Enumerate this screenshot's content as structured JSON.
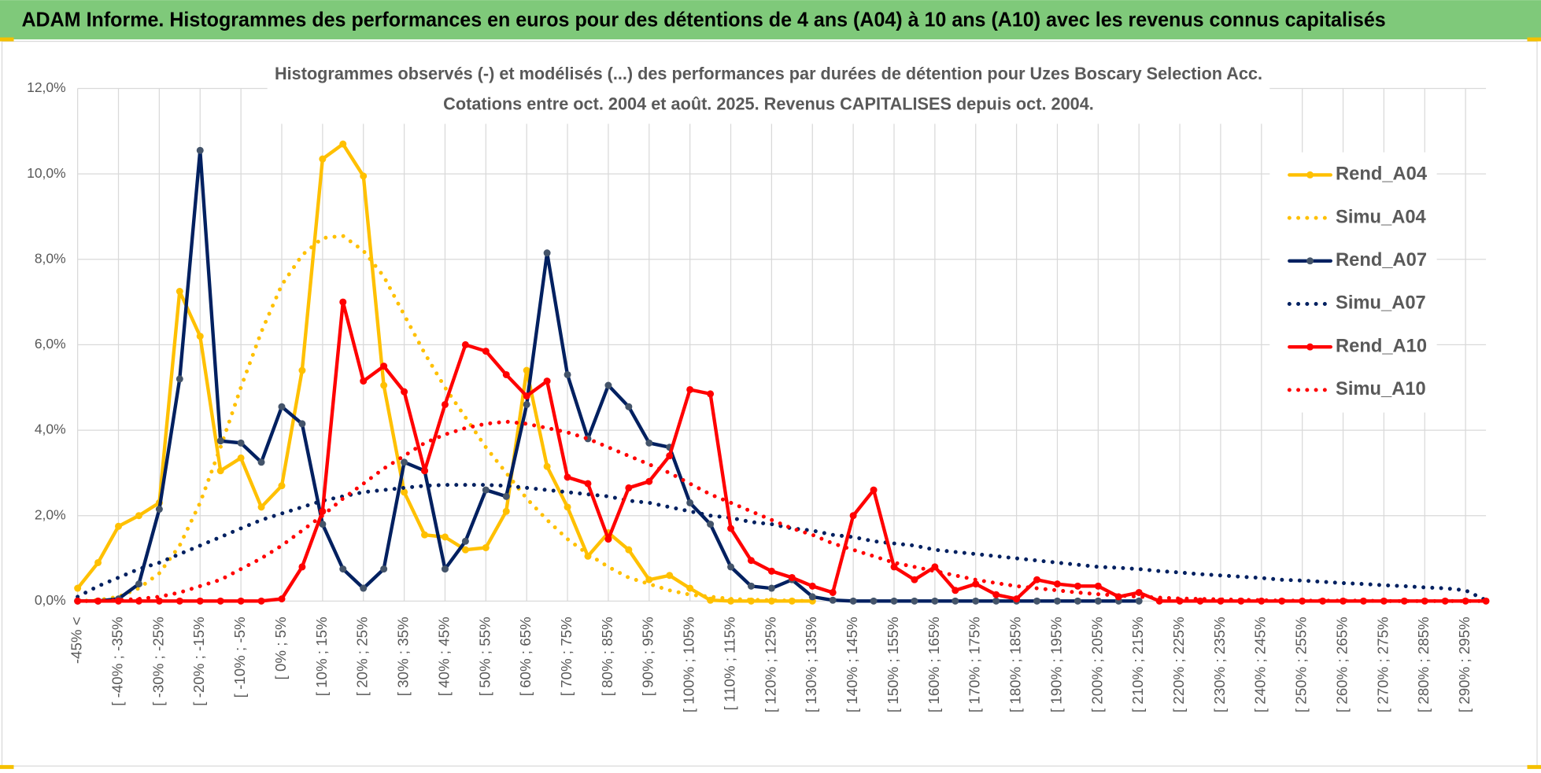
{
  "header": {
    "title": "ADAM Informe. Histogrammes des performances en euros pour des détentions de 4 ans (A04) à 10 ans (A10) avec les revenus connus capitalisés"
  },
  "chart_data": {
    "type": "line",
    "title": "Histogrammes observés (-) et modélisés (...) des performances par durées de détention pour Uzes Boscary Selection Acc.",
    "subtitle": "Cotations entre oct. 2004 et août. 2025. Revenus CAPITALISES depuis oct. 2004.",
    "categories": [
      "-45% <",
      null,
      "[ -40% ; -35%",
      null,
      "[ -30% ; -25%",
      null,
      "[ -20% ; -15%",
      null,
      "[ -10% ; -5%",
      null,
      "[ 0% ; 5%",
      null,
      "[ 10% ; 15%",
      null,
      "[ 20% ; 25%",
      null,
      "[ 30% ; 35%",
      null,
      "[ 40% ; 45%",
      null,
      "[ 50% ; 55%",
      null,
      "[ 60% ; 65%",
      null,
      "[ 70% ; 75%",
      null,
      "[ 80% ; 85%",
      null,
      "[ 90% ; 95%",
      null,
      "[ 100% ; 105%",
      null,
      "[ 110% ; 115%",
      null,
      "[ 120% ; 125%",
      null,
      "[ 130% ; 135%",
      null,
      "[ 140% ; 145%",
      null,
      "[ 150% ; 155%",
      null,
      "[ 160% ; 165%",
      null,
      "[ 170% ; 175%",
      null,
      "[ 180% ; 185%",
      null,
      "[ 190% ; 195%",
      null,
      "[ 200% ; 205%",
      null,
      "[ 210% ; 215%",
      null,
      "[ 220% ; 225%",
      null,
      "[ 230% ; 235%",
      null,
      "[ 240% ; 245%",
      null,
      "[ 250% ; 255%",
      null,
      "[ 260% ; 265%",
      null,
      "[ 270% ; 275%",
      null,
      "[ 280% ; 285%",
      null,
      "[ 290% ; 295%",
      null
    ],
    "ylim": [
      0,
      12
    ],
    "yticks": [
      {
        "value": 0,
        "label": "0,0%"
      },
      {
        "value": 2,
        "label": "2,0%"
      },
      {
        "value": 4,
        "label": "4,0%"
      },
      {
        "value": 6,
        "label": "6,0%"
      },
      {
        "value": 8,
        "label": "8,0%"
      },
      {
        "value": 10,
        "label": "10,0%"
      },
      {
        "value": 12,
        "label": "12,0%"
      }
    ],
    "grid": true,
    "legend": "right",
    "series": [
      {
        "name": "Rend_A04",
        "color": "#FFC000",
        "style": "solid",
        "markers": true,
        "values": [
          0.3,
          0.9,
          1.75,
          2.0,
          2.3,
          7.25,
          6.2,
          3.05,
          3.35,
          2.2,
          2.7,
          5.4,
          10.35,
          10.7,
          9.95,
          5.05,
          2.55,
          1.55,
          1.5,
          1.2,
          1.25,
          2.1,
          5.4,
          3.15,
          2.2,
          1.05,
          1.6,
          1.2,
          0.5,
          0.6,
          0.3,
          0.02,
          0,
          0,
          0,
          0,
          0,
          null,
          null,
          null,
          null,
          null,
          null,
          null,
          null,
          null,
          null,
          null,
          null,
          null,
          null,
          null,
          null,
          null,
          null,
          null,
          null,
          null,
          null,
          null,
          null,
          null,
          null,
          null,
          null,
          null,
          null,
          null,
          null,
          null
        ]
      },
      {
        "name": "Simu_A04",
        "color": "#FFC000",
        "style": "dotted",
        "markers": false,
        "values": [
          0,
          0.02,
          0.1,
          0.3,
          0.65,
          1.3,
          2.3,
          3.6,
          5.0,
          6.3,
          7.4,
          8.1,
          8.5,
          8.55,
          8.2,
          7.6,
          6.7,
          5.8,
          5.0,
          4.3,
          3.6,
          3.0,
          2.4,
          1.9,
          1.45,
          1.1,
          0.8,
          0.55,
          0.4,
          0.25,
          0.15,
          0.1,
          0.05,
          0.03,
          0.02,
          0.01,
          0,
          null,
          null,
          null,
          null,
          null,
          null,
          null,
          null,
          null,
          null,
          null,
          null,
          null,
          null,
          null,
          null,
          null,
          null,
          null,
          null,
          null,
          null,
          null,
          null,
          null,
          null,
          null,
          null,
          null,
          null,
          null,
          null,
          null
        ]
      },
      {
        "name": "Rend_A07",
        "color": "#002060",
        "style": "solid",
        "markers": true,
        "values": [
          0,
          0,
          0.05,
          0.4,
          2.15,
          5.2,
          10.55,
          3.75,
          3.7,
          3.25,
          4.55,
          4.15,
          1.8,
          0.75,
          0.3,
          0.75,
          3.25,
          3.05,
          0.75,
          1.4,
          2.6,
          2.45,
          4.6,
          8.15,
          5.3,
          3.8,
          5.05,
          4.55,
          3.7,
          3.6,
          2.3,
          1.8,
          0.8,
          0.35,
          0.3,
          0.5,
          0.1,
          0.02,
          0,
          0,
          0,
          0,
          0,
          0,
          0,
          0,
          0,
          0,
          0,
          0,
          0,
          0,
          0,
          null,
          null,
          null,
          null,
          null,
          null,
          null,
          null,
          null,
          null,
          null,
          null,
          null,
          null,
          null,
          null,
          null
        ]
      },
      {
        "name": "Simu_A07",
        "color": "#002060",
        "style": "dotted",
        "markers": false,
        "values": [
          0.1,
          0.35,
          0.55,
          0.75,
          0.9,
          1.1,
          1.3,
          1.5,
          1.7,
          1.9,
          2.05,
          2.2,
          2.35,
          2.45,
          2.55,
          2.6,
          2.65,
          2.7,
          2.72,
          2.72,
          2.72,
          2.7,
          2.65,
          2.6,
          2.55,
          2.5,
          2.45,
          2.35,
          2.3,
          2.2,
          2.1,
          2.0,
          1.95,
          1.85,
          1.8,
          1.7,
          1.65,
          1.55,
          1.5,
          1.4,
          1.35,
          1.3,
          1.2,
          1.15,
          1.1,
          1.05,
          1.0,
          0.95,
          0.9,
          0.85,
          0.8,
          0.78,
          0.75,
          0.7,
          0.67,
          0.63,
          0.6,
          0.57,
          0.54,
          0.5,
          0.48,
          0.45,
          0.42,
          0.4,
          0.37,
          0.35,
          0.32,
          0.3,
          0.25,
          0.02
        ]
      },
      {
        "name": "Rend_A10",
        "color": "#FF0000",
        "style": "solid",
        "markers": true,
        "values": [
          0,
          0,
          0,
          0,
          0,
          0,
          0,
          0,
          0,
          0,
          0.05,
          0.8,
          2.1,
          7.0,
          5.15,
          5.5,
          4.9,
          3.05,
          4.6,
          6.0,
          5.85,
          5.3,
          4.8,
          5.15,
          2.9,
          2.75,
          1.45,
          2.65,
          2.8,
          3.4,
          4.95,
          4.85,
          1.7,
          0.95,
          0.7,
          0.55,
          0.35,
          0.2,
          2.0,
          2.6,
          0.8,
          0.5,
          0.8,
          0.25,
          0.4,
          0.15,
          0.05,
          0.5,
          0.4,
          0.35,
          0.35,
          0.1,
          0.2,
          0,
          0,
          0,
          0,
          0,
          0,
          0,
          0,
          0,
          0,
          0,
          0,
          0,
          0,
          0,
          0,
          0
        ]
      },
      {
        "name": "Simu_A10",
        "color": "#FF0000",
        "style": "dotted",
        "markers": false,
        "values": [
          0,
          0,
          0.02,
          0.05,
          0.1,
          0.2,
          0.35,
          0.5,
          0.75,
          1.0,
          1.3,
          1.65,
          2.0,
          2.4,
          2.75,
          3.1,
          3.4,
          3.7,
          3.9,
          4.05,
          4.15,
          4.2,
          4.15,
          4.05,
          3.95,
          3.8,
          3.6,
          3.4,
          3.2,
          3.0,
          2.75,
          2.5,
          2.3,
          2.1,
          1.9,
          1.7,
          1.55,
          1.35,
          1.2,
          1.05,
          0.9,
          0.8,
          0.7,
          0.6,
          0.5,
          0.42,
          0.35,
          0.3,
          0.25,
          0.2,
          0.16,
          0.13,
          0.1,
          0.08,
          0.06,
          0.05,
          0.04,
          0.03,
          0.02,
          0.01,
          0.01,
          0.01,
          0.01,
          0.01,
          0,
          0,
          0,
          0,
          0,
          0
        ]
      }
    ]
  }
}
